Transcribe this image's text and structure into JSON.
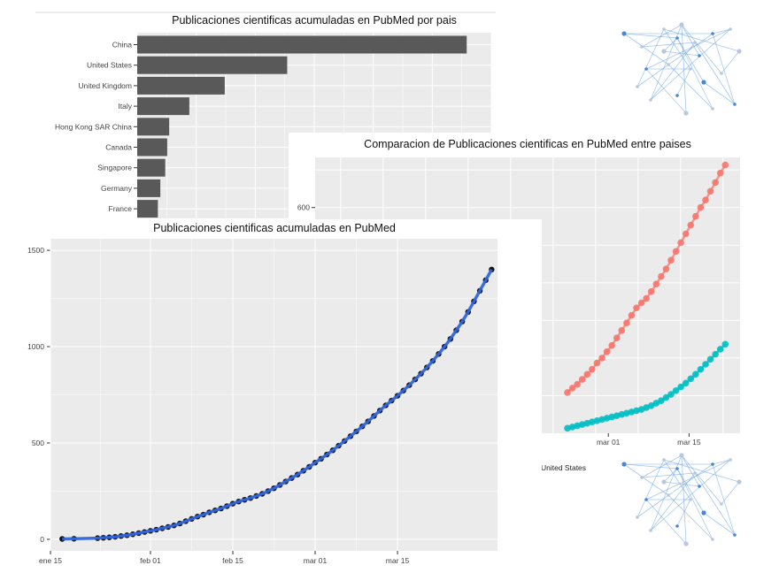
{
  "colors": {
    "panel_bg": "#ebebeb",
    "grid": "#ffffff",
    "bar_fill": "#595959",
    "series_a": "#f8766d",
    "series_b": "#00bfc4",
    "points": "#111111",
    "smooth": "#3366dd",
    "network": "#6aa2e6"
  },
  "icons": {
    "network_thumb_1": "network-graph-icon",
    "network_thumb_2": "network-graph-icon"
  },
  "chart_data": [
    {
      "type": "bar",
      "orientation": "horizontal",
      "title": "Publicaciones cientificas acumuladas en PubMed por pais",
      "categories": [
        "China",
        "United States",
        "United Kingdom",
        "Italy",
        "Hong Kong SAR China",
        "Canada",
        "Singapore",
        "Germany",
        "France"
      ],
      "values": [
        670,
        305,
        178,
        106,
        65,
        61,
        57,
        47,
        42
      ],
      "xlim": [
        0,
        720
      ],
      "grid": true
    },
    {
      "type": "line",
      "title": "Comparacion de Publicaciones cientificas en PubMed entre paises",
      "y_tick_labels": [
        "600"
      ],
      "x_tick_labels": [
        "mar 01",
        "mar 15"
      ],
      "legend_entries": [
        "United States"
      ],
      "ylim": [
        240,
        680
      ],
      "xlim": [
        0,
        28
      ],
      "series": [
        {
          "x": [
            0,
            0.8,
            1.6,
            2.4,
            3.2,
            4,
            4.8,
            5.6,
            6.4,
            7.2,
            8,
            8.8,
            9.6,
            10.4,
            11.2,
            12,
            12.8,
            13.6,
            14.4,
            15.2,
            16,
            16.8,
            17.6,
            18.4,
            19.2,
            20,
            20.8,
            21.6,
            22.4,
            23.2,
            24,
            24.8,
            25.6
          ],
          "y": [
            305,
            312,
            318,
            326,
            334,
            342,
            352,
            360,
            370,
            380,
            392,
            404,
            416,
            428,
            440,
            448,
            455,
            466,
            478,
            490,
            502,
            516,
            530,
            544,
            558,
            572,
            586,
            600,
            612,
            626,
            640,
            655,
            668
          ]
        },
        {
          "x": [
            0,
            0.8,
            1.6,
            2.4,
            3.2,
            4,
            4.8,
            5.6,
            6.4,
            7.2,
            8,
            8.8,
            9.6,
            10.4,
            11.2,
            12,
            12.8,
            13.6,
            14.4,
            15.2,
            16,
            16.8,
            17.6,
            18.4,
            19.2,
            20,
            20.8,
            21.6,
            22.4,
            23.2,
            24,
            24.8,
            25.6
          ],
          "y": [
            248,
            250,
            252,
            254,
            256,
            258,
            260,
            262,
            264,
            266,
            268,
            270,
            272,
            274,
            276,
            278,
            281,
            284,
            288,
            292,
            297,
            302,
            308,
            314,
            320,
            327,
            334,
            342,
            350,
            358,
            366,
            374,
            382
          ]
        }
      ],
      "grid": true
    },
    {
      "type": "scatter",
      "title": "Publicaciones cientificas acumuladas en PubMed",
      "x_tick_labels": [
        "ene 15",
        "feb 01",
        "feb 15",
        "mar 01",
        "mar 15"
      ],
      "x_tick_positions": [
        0,
        17,
        31,
        45,
        59
      ],
      "y_ticks": [
        0,
        500,
        1000,
        1500
      ],
      "ylim": [
        -60,
        1560
      ],
      "xlim": [
        0,
        76
      ],
      "points_x": [
        2,
        4,
        8,
        9,
        10,
        11,
        12,
        13,
        14,
        15,
        16,
        17,
        18,
        19,
        20,
        21,
        22,
        23,
        24,
        25,
        26,
        27,
        28,
        29,
        30,
        31,
        32,
        33,
        34,
        35,
        36,
        37,
        38,
        39,
        40,
        41,
        42,
        43,
        44,
        45,
        46,
        47,
        48,
        49,
        50,
        51,
        52,
        53,
        54,
        55,
        56,
        57,
        58,
        59,
        60,
        61,
        62,
        63,
        64,
        65,
        66,
        67,
        68,
        69,
        70,
        71,
        72,
        73,
        74,
        75
      ],
      "points_y": [
        2,
        3,
        6,
        8,
        10,
        13,
        17,
        21,
        26,
        32,
        38,
        44,
        50,
        57,
        64,
        72,
        82,
        94,
        106,
        118,
        128,
        140,
        150,
        160,
        172,
        185,
        196,
        205,
        214,
        225,
        236,
        250,
        265,
        282,
        300,
        318,
        336,
        356,
        376,
        398,
        418,
        440,
        462,
        486,
        510,
        535,
        560,
        586,
        612,
        640,
        668,
        695,
        720,
        745,
        772,
        800,
        830,
        860,
        892,
        926,
        962,
        1000,
        1040,
        1085,
        1130,
        1180,
        1235,
        1290,
        1345,
        1400
      ]
    }
  ]
}
